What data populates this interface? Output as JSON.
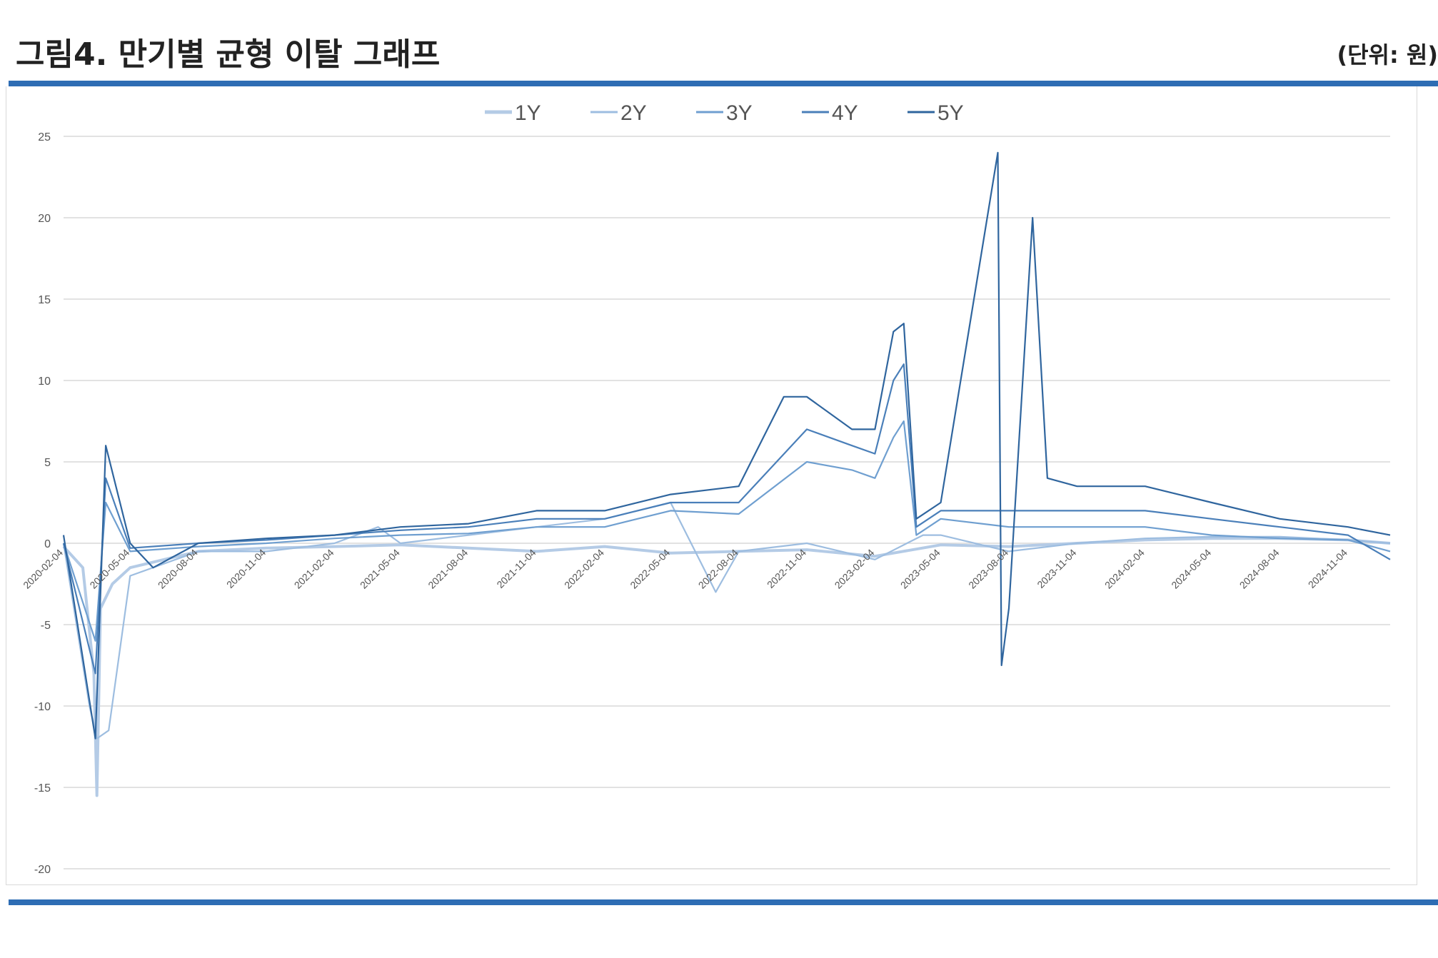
{
  "header": {
    "title": "그림4. 만기별 균형 이탈 그래프",
    "unit": "(단위: 원)"
  },
  "colors": {
    "rule": "#2e6db4",
    "grid": "#d9d9d9",
    "series": [
      "#b4cbe6",
      "#9dbde0",
      "#6f9fd0",
      "#4a7fb9",
      "#2f659e"
    ]
  },
  "chart_data": {
    "type": "line",
    "title": "",
    "xlabel": "",
    "ylabel": "",
    "ylim": [
      -20,
      25
    ],
    "yticks": [
      25,
      20,
      15,
      10,
      5,
      0,
      -5,
      -10,
      -15,
      -20
    ],
    "xrange": [
      "2020-02-04",
      "2024-12-31"
    ],
    "xticks": [
      "2020-02-04",
      "2020-05-04",
      "2020-08-04",
      "2020-11-04",
      "2021-02-04",
      "2021-05-04",
      "2021-08-04",
      "2021-11-04",
      "2022-02-04",
      "2022-05-04",
      "2022-08-04",
      "2022-11-04",
      "2023-02-04",
      "2023-05-04",
      "2023-08-04",
      "2023-11-04",
      "2024-02-04",
      "2024-05-04",
      "2024-08-04",
      "2024-11-04"
    ],
    "grid": true,
    "legend_position": "top",
    "series": [
      {
        "name": "1Y",
        "points": [
          [
            "2020-02-04",
            -0.2
          ],
          [
            "2020-03-01",
            -1.5
          ],
          [
            "2020-03-16",
            -8.0
          ],
          [
            "2020-03-20",
            -15.5
          ],
          [
            "2020-03-25",
            -4.0
          ],
          [
            "2020-04-10",
            -2.5
          ],
          [
            "2020-05-04",
            -1.5
          ],
          [
            "2020-08-04",
            -0.5
          ],
          [
            "2020-11-04",
            -0.3
          ],
          [
            "2021-02-04",
            -0.2
          ],
          [
            "2021-05-04",
            -0.1
          ],
          [
            "2021-08-04",
            -0.3
          ],
          [
            "2021-11-04",
            -0.5
          ],
          [
            "2022-02-04",
            -0.2
          ],
          [
            "2022-05-04",
            -0.6
          ],
          [
            "2022-08-04",
            -0.5
          ],
          [
            "2022-11-04",
            -0.4
          ],
          [
            "2023-02-04",
            -0.8
          ],
          [
            "2023-05-04",
            -0.1
          ],
          [
            "2023-08-04",
            -0.2
          ],
          [
            "2023-11-04",
            0.0
          ],
          [
            "2024-02-04",
            0.2
          ],
          [
            "2024-05-04",
            0.3
          ],
          [
            "2024-08-04",
            0.3
          ],
          [
            "2024-11-04",
            0.2
          ],
          [
            "2024-12-31",
            0.0
          ]
        ]
      },
      {
        "name": "2Y",
        "points": [
          [
            "2020-02-04",
            0.0
          ],
          [
            "2020-03-10",
            -10.0
          ],
          [
            "2020-03-20",
            -12.0
          ],
          [
            "2020-04-05",
            -11.5
          ],
          [
            "2020-05-04",
            -2.0
          ],
          [
            "2020-08-04",
            -0.5
          ],
          [
            "2020-11-04",
            -0.5
          ],
          [
            "2021-02-04",
            0.0
          ],
          [
            "2021-04-04",
            1.0
          ],
          [
            "2021-05-04",
            0.0
          ],
          [
            "2021-08-04",
            0.5
          ],
          [
            "2021-11-04",
            1.0
          ],
          [
            "2022-02-04",
            1.5
          ],
          [
            "2022-05-04",
            2.5
          ],
          [
            "2022-07-04",
            -3.0
          ],
          [
            "2022-08-04",
            -0.5
          ],
          [
            "2022-11-04",
            0.0
          ],
          [
            "2023-02-04",
            -1.0
          ],
          [
            "2023-04-10",
            0.5
          ],
          [
            "2023-05-04",
            0.5
          ],
          [
            "2023-08-04",
            -0.5
          ],
          [
            "2023-11-04",
            0.0
          ],
          [
            "2024-02-04",
            0.3
          ],
          [
            "2024-05-04",
            0.4
          ],
          [
            "2024-08-04",
            0.4
          ],
          [
            "2024-11-04",
            0.2
          ],
          [
            "2024-12-31",
            0.0
          ]
        ]
      },
      {
        "name": "3Y",
        "points": [
          [
            "2020-02-04",
            0.0
          ],
          [
            "2020-03-18",
            -6.0
          ],
          [
            "2020-04-01",
            2.5
          ],
          [
            "2020-05-04",
            -0.5
          ],
          [
            "2020-08-04",
            -0.2
          ],
          [
            "2020-11-04",
            0.0
          ],
          [
            "2021-02-04",
            0.3
          ],
          [
            "2021-05-04",
            0.5
          ],
          [
            "2021-08-04",
            0.6
          ],
          [
            "2021-11-04",
            1.0
          ],
          [
            "2022-02-04",
            1.0
          ],
          [
            "2022-05-04",
            2.0
          ],
          [
            "2022-08-04",
            1.8
          ],
          [
            "2022-11-04",
            5.0
          ],
          [
            "2023-01-04",
            4.5
          ],
          [
            "2023-02-04",
            4.0
          ],
          [
            "2023-03-01",
            6.5
          ],
          [
            "2023-03-15",
            7.5
          ],
          [
            "2023-04-01",
            0.5
          ],
          [
            "2023-05-04",
            1.5
          ],
          [
            "2023-08-04",
            1.0
          ],
          [
            "2023-11-04",
            1.0
          ],
          [
            "2024-02-04",
            1.0
          ],
          [
            "2024-05-04",
            0.5
          ],
          [
            "2024-08-04",
            0.3
          ],
          [
            "2024-11-04",
            0.2
          ],
          [
            "2024-12-31",
            -0.5
          ]
        ]
      },
      {
        "name": "4Y",
        "points": [
          [
            "2020-02-04",
            0.0
          ],
          [
            "2020-03-18",
            -8.0
          ],
          [
            "2020-04-01",
            4.0
          ],
          [
            "2020-05-04",
            -0.3
          ],
          [
            "2020-08-04",
            0.0
          ],
          [
            "2020-11-04",
            0.2
          ],
          [
            "2021-02-04",
            0.5
          ],
          [
            "2021-05-04",
            0.8
          ],
          [
            "2021-08-04",
            1.0
          ],
          [
            "2021-11-04",
            1.5
          ],
          [
            "2022-02-04",
            1.5
          ],
          [
            "2022-05-04",
            2.5
          ],
          [
            "2022-08-04",
            2.5
          ],
          [
            "2022-11-04",
            7.0
          ],
          [
            "2023-01-04",
            6.0
          ],
          [
            "2023-02-04",
            5.5
          ],
          [
            "2023-03-01",
            10.0
          ],
          [
            "2023-03-15",
            11.0
          ],
          [
            "2023-04-01",
            1.0
          ],
          [
            "2023-05-04",
            2.0
          ],
          [
            "2023-08-04",
            2.0
          ],
          [
            "2023-11-04",
            2.0
          ],
          [
            "2024-02-04",
            2.0
          ],
          [
            "2024-05-04",
            1.5
          ],
          [
            "2024-08-04",
            1.0
          ],
          [
            "2024-11-04",
            0.5
          ],
          [
            "2024-12-31",
            -1.0
          ]
        ]
      },
      {
        "name": "5Y",
        "points": [
          [
            "2020-02-04",
            0.5
          ],
          [
            "2020-03-18",
            -12.0
          ],
          [
            "2020-04-01",
            6.0
          ],
          [
            "2020-05-04",
            0.0
          ],
          [
            "2020-06-04",
            -1.5
          ],
          [
            "2020-08-04",
            0.0
          ],
          [
            "2020-11-04",
            0.3
          ],
          [
            "2021-02-04",
            0.5
          ],
          [
            "2021-05-04",
            1.0
          ],
          [
            "2021-08-04",
            1.2
          ],
          [
            "2021-11-04",
            2.0
          ],
          [
            "2022-02-04",
            2.0
          ],
          [
            "2022-05-04",
            3.0
          ],
          [
            "2022-08-04",
            3.5
          ],
          [
            "2022-10-04",
            9.0
          ],
          [
            "2022-11-04",
            9.0
          ],
          [
            "2023-01-04",
            7.0
          ],
          [
            "2023-02-04",
            7.0
          ],
          [
            "2023-03-01",
            13.0
          ],
          [
            "2023-03-15",
            13.5
          ],
          [
            "2023-04-01",
            1.5
          ],
          [
            "2023-05-04",
            2.5
          ],
          [
            "2023-07-20",
            24.0
          ],
          [
            "2023-07-25",
            -7.5
          ],
          [
            "2023-08-04",
            -4.0
          ],
          [
            "2023-09-05",
            20.0
          ],
          [
            "2023-09-25",
            4.0
          ],
          [
            "2023-11-04",
            3.5
          ],
          [
            "2024-02-04",
            3.5
          ],
          [
            "2024-05-04",
            2.5
          ],
          [
            "2024-08-04",
            1.5
          ],
          [
            "2024-11-04",
            1.0
          ],
          [
            "2024-12-31",
            0.5
          ]
        ]
      }
    ]
  }
}
